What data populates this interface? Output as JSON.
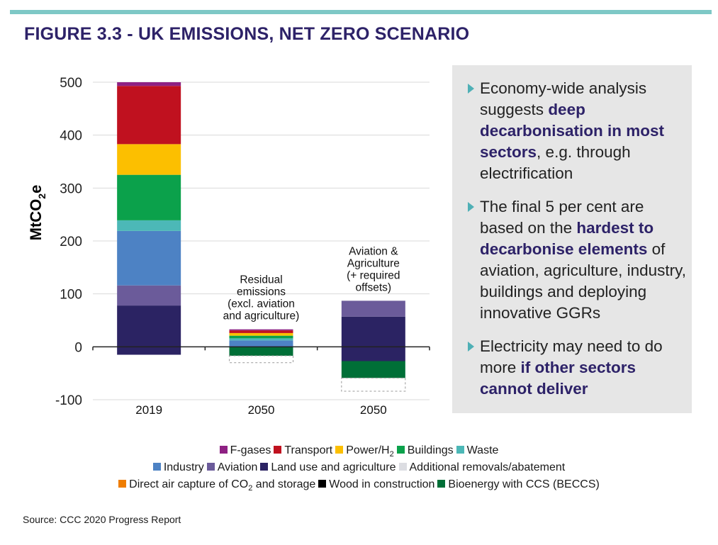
{
  "title": "FIGURE 3.3 - UK EMISSIONS, NET ZERO SCENARIO",
  "source": "Source: CCC 2020 Progress Report",
  "colors": {
    "title": "#2d2268",
    "topbar": "#7ec8c6",
    "panel_bg": "#e6e6e6",
    "bullet_arrow": "#4fb0b6",
    "f_gases": "#8e2183",
    "transport": "#c0111f",
    "power": "#fcbf00",
    "buildings": "#0ba14b",
    "waste": "#4cb8b7",
    "industry": "#4d82c4",
    "aviation": "#6b5b9a",
    "land_use": "#2b2363",
    "additional_removals": "#dcdde2",
    "daccs": "#ef7d00",
    "wood": "#000000",
    "beccs": "#006f37"
  },
  "panel": {
    "bullets": [
      {
        "segments": [
          {
            "text": "Economy-wide analysis suggests ",
            "bold": false
          },
          {
            "text": "deep decarbonisation in most sectors",
            "bold": true
          },
          {
            "text": ", e.g. through electrification",
            "bold": false
          }
        ]
      },
      {
        "segments": [
          {
            "text": "The final 5 per cent are based on the ",
            "bold": false
          },
          {
            "text": "hardest to decarbonise elements",
            "bold": true
          },
          {
            "text": " of aviation, agriculture, industry, buildings and deploying innovative GGRs",
            "bold": false
          }
        ]
      },
      {
        "segments": [
          {
            "text": "Electricity may need to do more ",
            "bold": false
          },
          {
            "text": "if other sectors cannot deliver",
            "bold": true
          }
        ]
      }
    ]
  },
  "legend": {
    "rows": [
      [
        {
          "label": "F-gases",
          "color_key": "f_gases"
        },
        {
          "label": "Transport",
          "color_key": "transport"
        },
        {
          "label": "Power/H",
          "sub": "2",
          "color_key": "power"
        },
        {
          "label": "Buildings",
          "color_key": "buildings"
        },
        {
          "label": "Waste",
          "color_key": "waste"
        }
      ],
      [
        {
          "label": "Industry",
          "color_key": "industry"
        },
        {
          "label": "Aviation",
          "color_key": "aviation"
        },
        {
          "label": "Land use and agriculture",
          "color_key": "land_use"
        },
        {
          "label": "Additional removals/abatement",
          "color_key": "additional_removals"
        }
      ],
      [
        {
          "label": "Direct air capture of CO",
          "sub": "2",
          "after": " and storage",
          "color_key": "daccs"
        },
        {
          "label": "Wood in construction",
          "color_key": "wood"
        },
        {
          "label": "Bioenergy with CCS (BECCS)",
          "color_key": "beccs"
        }
      ]
    ]
  },
  "chart_data": {
    "type": "bar",
    "stacked": true,
    "ylabel": "MtCO2e",
    "ylim": [
      -100,
      500
    ],
    "yticks": [
      -100,
      0,
      100,
      200,
      300,
      400,
      500
    ],
    "grid": true,
    "categories": [
      "2019",
      "2050",
      "2050"
    ],
    "annotations": [
      {
        "category_index": 1,
        "lines": [
          "Residual",
          "emissions",
          "(excl. aviation",
          "and agriculture)"
        ]
      },
      {
        "category_index": 2,
        "lines": [
          "Aviation &",
          "Agriculture",
          "(+ required",
          "offsets)"
        ]
      }
    ],
    "stacks": [
      {
        "positive": [
          {
            "series": "Land use and agriculture",
            "value": 78,
            "color_key": "land_use"
          },
          {
            "series": "Aviation",
            "value": 38,
            "color_key": "aviation"
          },
          {
            "series": "Industry",
            "value": 103,
            "color_key": "industry"
          },
          {
            "series": "Waste",
            "value": 20,
            "color_key": "waste"
          },
          {
            "series": "Buildings",
            "value": 86,
            "color_key": "buildings"
          },
          {
            "series": "Power/H2",
            "value": 58,
            "color_key": "power"
          },
          {
            "series": "Transport",
            "value": 110,
            "color_key": "transport"
          },
          {
            "series": "F-gases",
            "value": 7,
            "color_key": "f_gases"
          }
        ],
        "negative": [
          {
            "series": "Land use and agriculture",
            "value": -15,
            "color_key": "land_use"
          }
        ]
      },
      {
        "positive": [
          {
            "series": "Industry",
            "value": 12,
            "color_key": "industry"
          },
          {
            "series": "Waste",
            "value": 4,
            "color_key": "waste"
          },
          {
            "series": "Buildings",
            "value": 5,
            "color_key": "buildings"
          },
          {
            "series": "Power/H2",
            "value": 5,
            "color_key": "power"
          },
          {
            "series": "Transport",
            "value": 5,
            "color_key": "transport"
          },
          {
            "series": "F-gases",
            "value": 2,
            "color_key": "f_gases"
          }
        ],
        "negative": [
          {
            "series": "Bioenergy with CCS (BECCS)",
            "value": -17,
            "color_key": "beccs"
          },
          {
            "series": "Additional removals/abatement",
            "value": -13,
            "color_key": "additional_removals",
            "dashed": true
          }
        ]
      },
      {
        "positive": [
          {
            "series": "Land use and agriculture",
            "value": 57,
            "color_key": "land_use"
          },
          {
            "series": "Aviation",
            "value": 30,
            "color_key": "aviation"
          }
        ],
        "negative": [
          {
            "series": "Land use and agriculture",
            "value": -27,
            "color_key": "land_use"
          },
          {
            "series": "Bioenergy with CCS (BECCS)",
            "value": -32,
            "color_key": "beccs"
          },
          {
            "series": "Additional removals/abatement",
            "value": -25,
            "color_key": "additional_removals",
            "dashed": true
          }
        ]
      }
    ]
  }
}
